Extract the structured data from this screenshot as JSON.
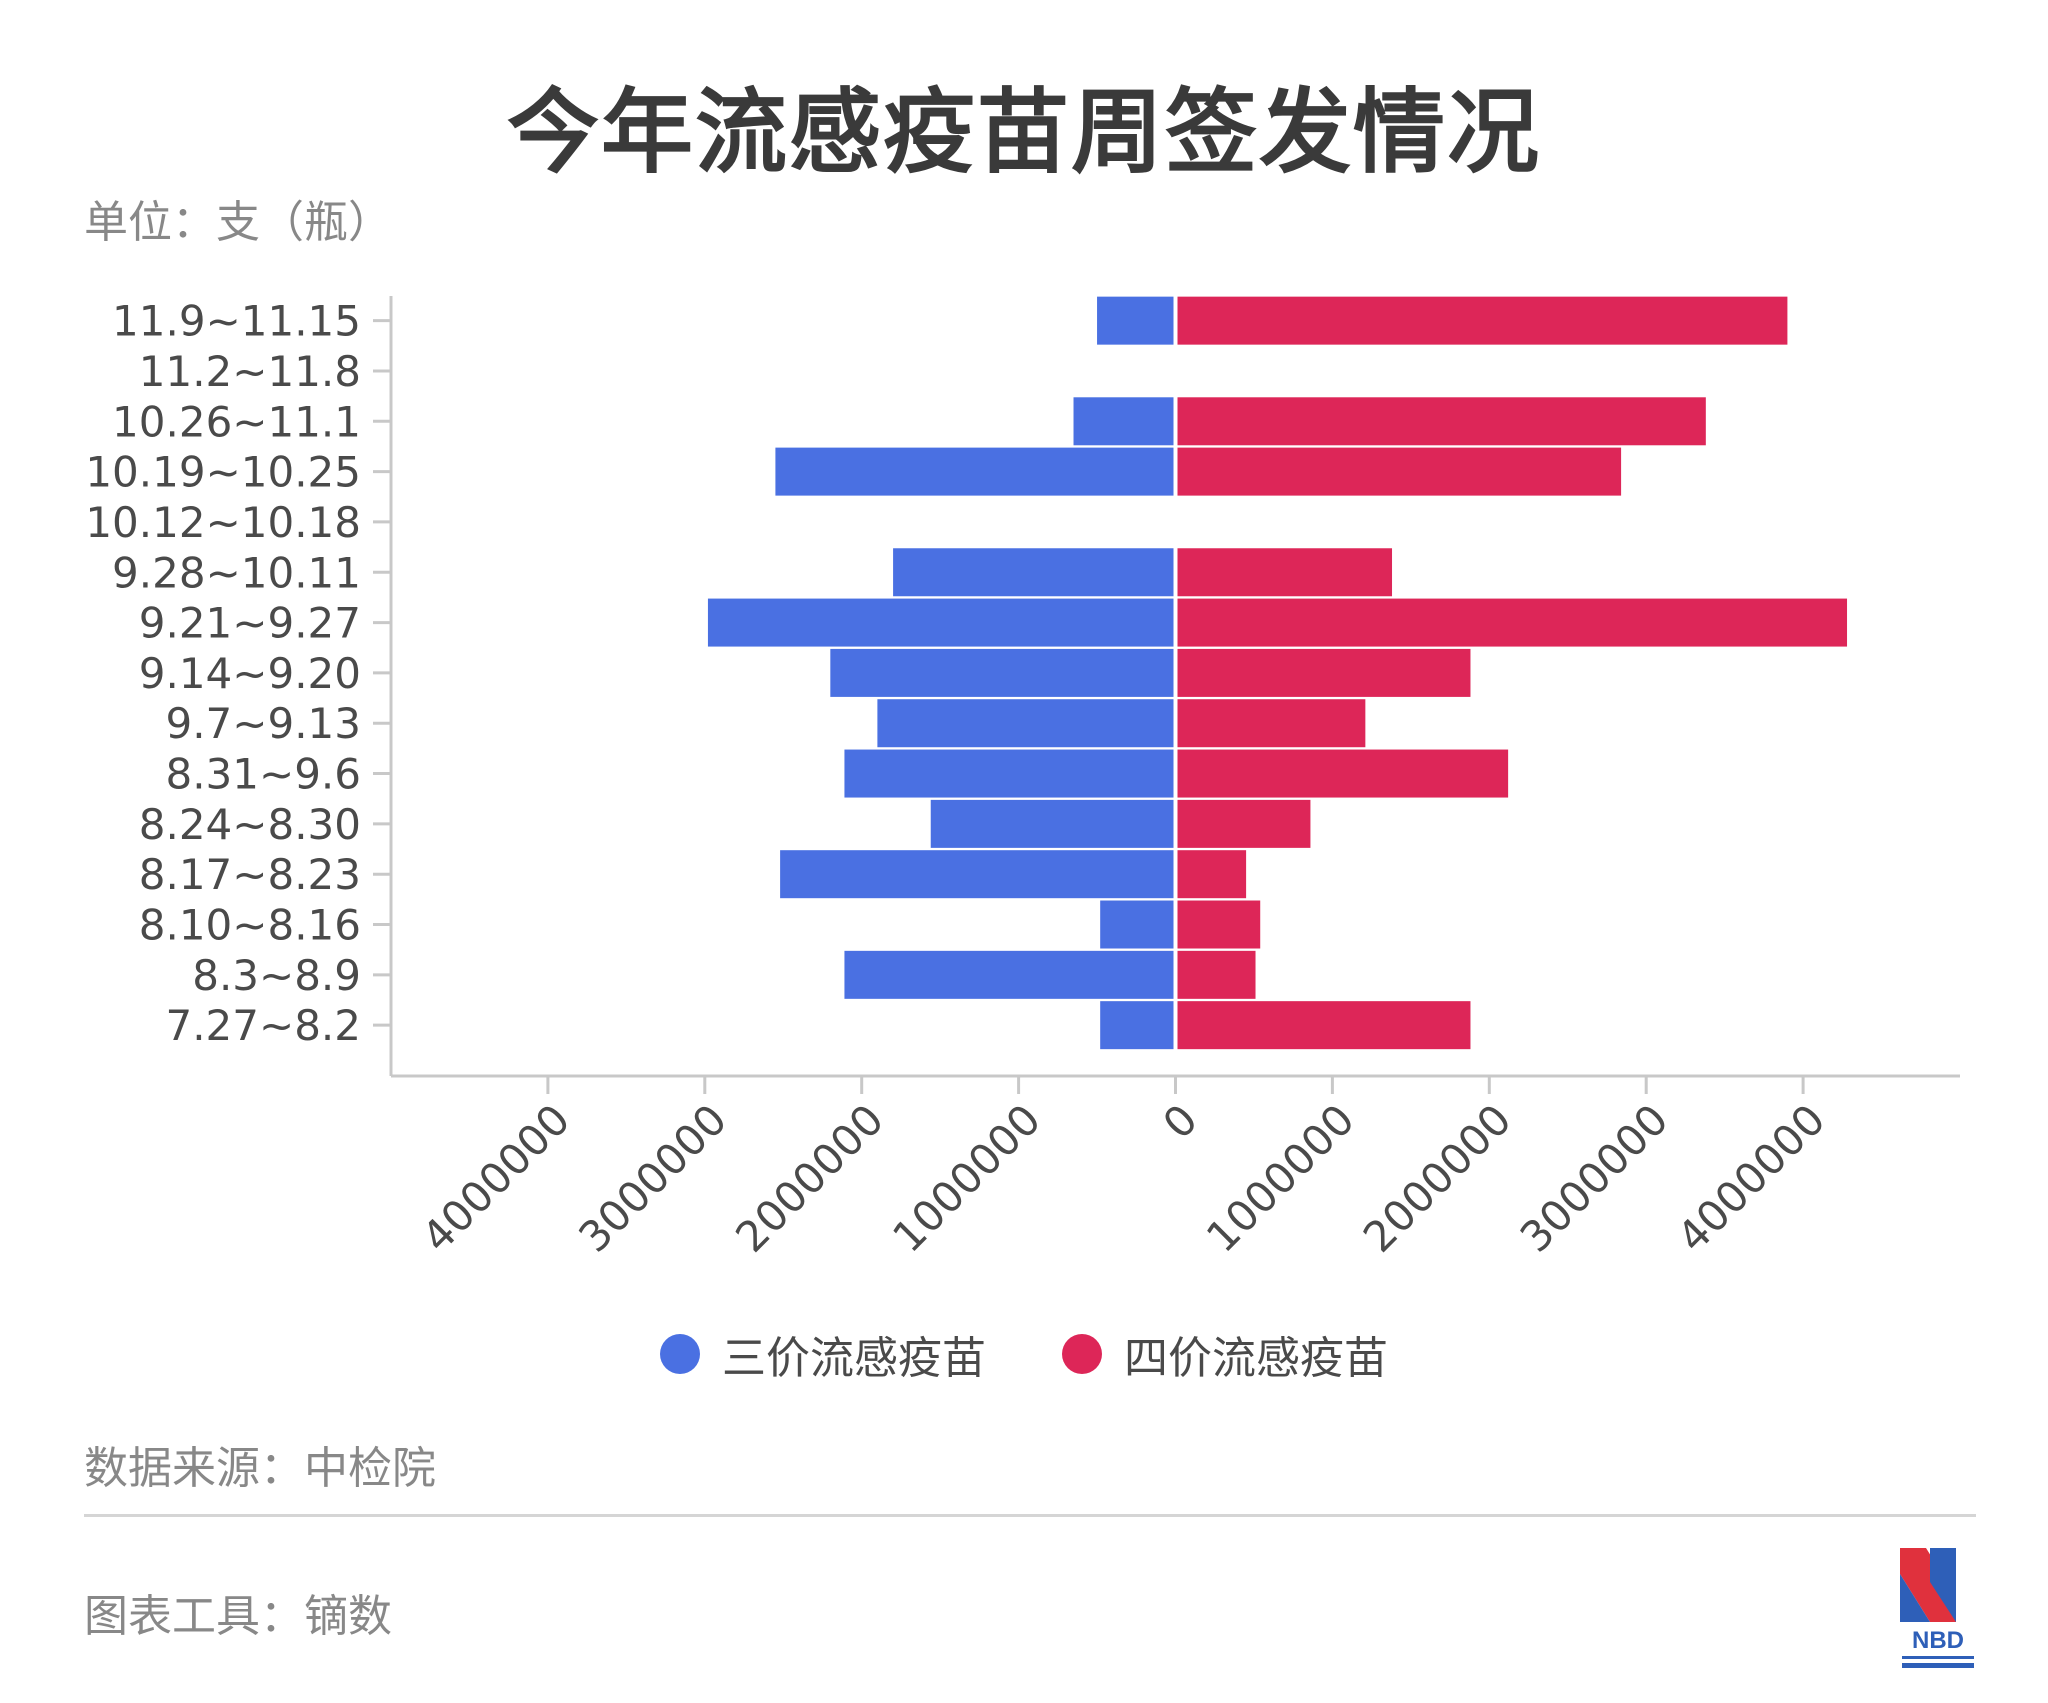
{
  "title": "今年流感疫苗周签发情况",
  "unit_label": "单位：支（瓶）",
  "source_label": "数据来源：中检院",
  "tool_label": "图表工具：镝数",
  "logo": {
    "text": "NBD",
    "icon": "nbd-logo-icon"
  },
  "colors": {
    "trivalent": "#4a70e2",
    "quadrivalent": "#dd2658",
    "axis": "#c8c8c8"
  },
  "chart_data": {
    "type": "bar",
    "orientation": "horizontal-butterfly",
    "categories": [
      "11.9~11.15",
      "11.2~11.8",
      "10.26~11.1",
      "10.19~10.25",
      "10.12~10.18",
      "9.28~10.11",
      "9.21~9.27",
      "9.14~9.20",
      "9.7~9.13",
      "8.31~9.6",
      "8.24~8.30",
      "8.17~8.23",
      "8.10~8.16",
      "8.3~8.9",
      "7.27~8.2"
    ],
    "series": [
      {
        "name": "三价流感疫苗",
        "direction": "left",
        "values": [
          500000,
          0,
          650000,
          2550000,
          0,
          1800000,
          2980000,
          2200000,
          1900000,
          2110000,
          1560000,
          2520000,
          480000,
          2110000,
          480000
        ]
      },
      {
        "name": "四价流感疫苗",
        "direction": "right",
        "values": [
          3900000,
          0,
          3380000,
          2840000,
          0,
          1380000,
          4280000,
          1880000,
          1210000,
          2120000,
          860000,
          450000,
          540000,
          510000,
          1880000
        ]
      }
    ],
    "xlim": [
      -5000000,
      5000000
    ],
    "ticks": [
      -4000000,
      -3000000,
      -2000000,
      -1000000,
      0,
      1000000,
      2000000,
      3000000,
      4000000
    ],
    "tick_labels": [
      "4000000",
      "3000000",
      "2000000",
      "1000000",
      "0",
      "1000000",
      "2000000",
      "3000000",
      "4000000"
    ],
    "legend_position": "bottom-center",
    "grid": false
  }
}
